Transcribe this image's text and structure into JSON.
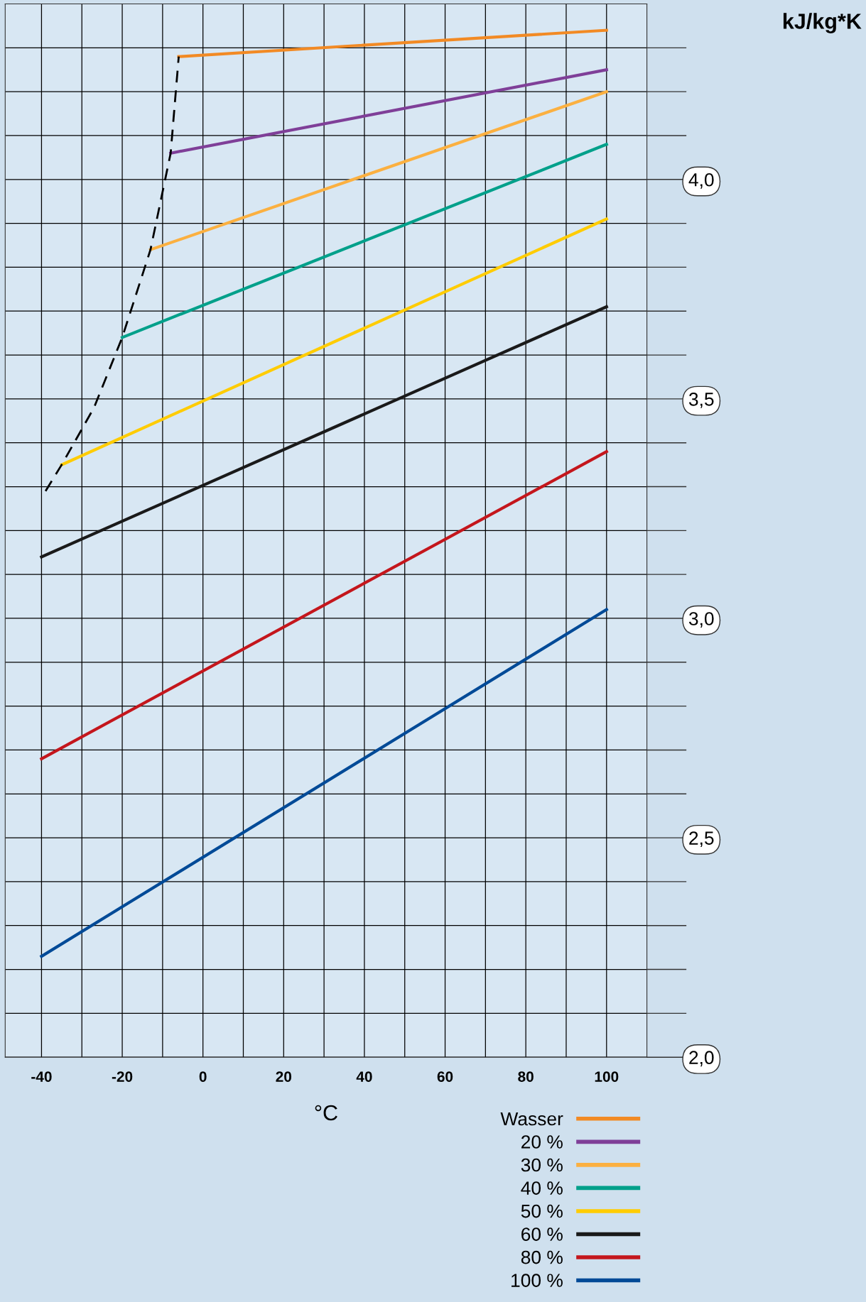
{
  "chart_data": {
    "type": "line",
    "xlabel": "°C",
    "ylabel": "kJ/kg*K",
    "xlim": [
      -49,
      110
    ],
    "ylim": [
      2.0,
      4.4
    ],
    "xticks": [
      {
        "value": -40,
        "label": "-40"
      },
      {
        "value": -30,
        "label": null
      },
      {
        "value": -20,
        "label": "-20"
      },
      {
        "value": -10,
        "label": null
      },
      {
        "value": 0,
        "label": "0"
      },
      {
        "value": 10,
        "label": null
      },
      {
        "value": 20,
        "label": "20"
      },
      {
        "value": 30,
        "label": null
      },
      {
        "value": 40,
        "label": "40"
      },
      {
        "value": 50,
        "label": null
      },
      {
        "value": 60,
        "label": "60"
      },
      {
        "value": 70,
        "label": null
      },
      {
        "value": 80,
        "label": "80"
      },
      {
        "value": 90,
        "label": null
      },
      {
        "value": 100,
        "label": "100"
      }
    ],
    "yticks": [
      {
        "value": 2.0,
        "label": "2,0"
      },
      {
        "value": 2.1,
        "label": null
      },
      {
        "value": 2.2,
        "label": null
      },
      {
        "value": 2.3,
        "label": null
      },
      {
        "value": 2.4,
        "label": null
      },
      {
        "value": 2.5,
        "label": "2,5"
      },
      {
        "value": 2.6,
        "label": null
      },
      {
        "value": 2.7,
        "label": null
      },
      {
        "value": 2.8,
        "label": null
      },
      {
        "value": 2.9,
        "label": null
      },
      {
        "value": 3.0,
        "label": "3,0"
      },
      {
        "value": 3.1,
        "label": null
      },
      {
        "value": 3.2,
        "label": null
      },
      {
        "value": 3.3,
        "label": null
      },
      {
        "value": 3.4,
        "label": null
      },
      {
        "value": 3.5,
        "label": "3,5"
      },
      {
        "value": 3.6,
        "label": null
      },
      {
        "value": 3.7,
        "label": null
      },
      {
        "value": 3.8,
        "label": null
      },
      {
        "value": 3.9,
        "label": null
      },
      {
        "value": 4.0,
        "label": "4,0"
      },
      {
        "value": 4.1,
        "label": null
      },
      {
        "value": 4.2,
        "label": null
      },
      {
        "value": 4.3,
        "label": null
      }
    ],
    "grid": true,
    "legend": "bottom right",
    "marker": "none",
    "series": [
      {
        "name": "Wasser",
        "color": "#f28a24",
        "x": [
          -6,
          100
        ],
        "values": [
          4.28,
          4.34
        ]
      },
      {
        "name": "20 %",
        "color": "#7f3f98",
        "x": [
          -8,
          100
        ],
        "values": [
          4.06,
          4.25
        ]
      },
      {
        "name": "30 %",
        "color": "#fbb040",
        "x": [
          -13,
          100
        ],
        "values": [
          3.84,
          4.2
        ]
      },
      {
        "name": "40 %",
        "color": "#00a08a",
        "x": [
          -20,
          100
        ],
        "values": [
          3.64,
          4.08
        ]
      },
      {
        "name": "50 %",
        "color": "#ffcc00",
        "x": [
          -35,
          100
        ],
        "values": [
          3.35,
          3.91
        ]
      },
      {
        "name": "60 %",
        "color": "#1a1a1a",
        "x": [
          -40,
          100
        ],
        "values": [
          3.14,
          3.71
        ]
      },
      {
        "name": "80 %",
        "color": "#c4161c",
        "x": [
          -40,
          100
        ],
        "values": [
          2.68,
          3.38
        ]
      },
      {
        "name": "100 %",
        "color": "#004a97",
        "x": [
          -40,
          100
        ],
        "values": [
          2.23,
          3.02
        ]
      },
      {
        "color": "#000000",
        "line_style": "dashed",
        "x": [
          -39,
          -35,
          -27,
          -20,
          -13,
          -8,
          -6
        ],
        "values": [
          3.29,
          3.35,
          3.48,
          3.64,
          3.84,
          4.06,
          4.28
        ]
      }
    ]
  }
}
